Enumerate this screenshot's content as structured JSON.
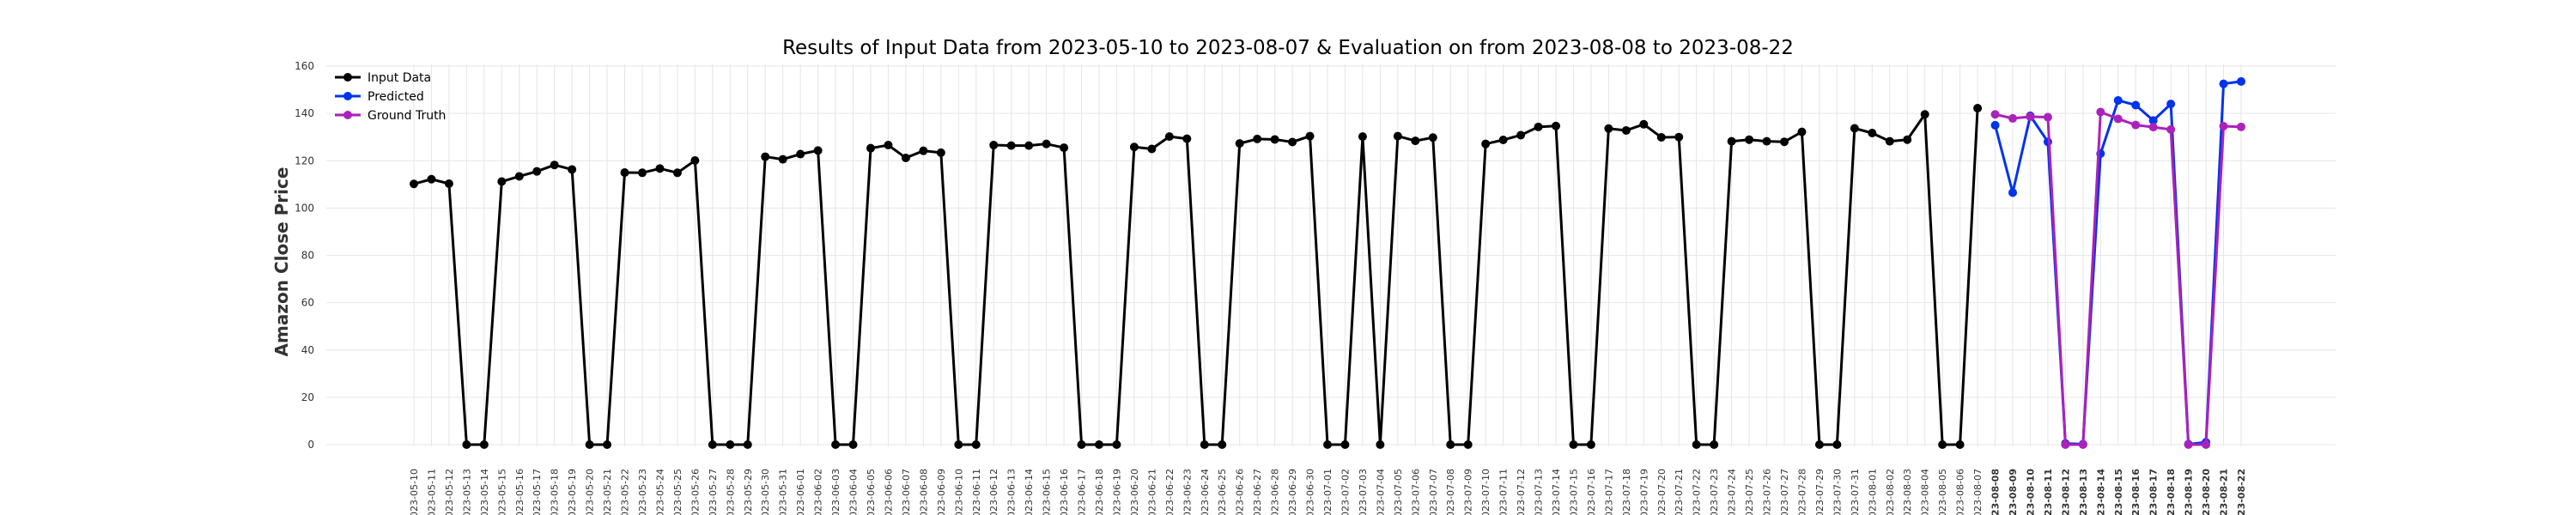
{
  "chart_data": {
    "type": "line",
    "title": "Results of Input Data from 2023-05-10 to 2023-08-07 & Evaluation on from 2023-08-08 to 2023-08-22",
    "ylabel": "Amazon Close Price",
    "xlabel": "",
    "ylim": [
      0,
      160
    ],
    "yticks": [
      0,
      20,
      40,
      60,
      80,
      100,
      120,
      140,
      160
    ],
    "grid": true,
    "legend_position": "top-left",
    "categories": [
      "2023-05-10",
      "2023-05-11",
      "2023-05-12",
      "2023-05-13",
      "2023-05-14",
      "2023-05-15",
      "2023-05-16",
      "2023-05-17",
      "2023-05-18",
      "2023-05-19",
      "2023-05-20",
      "2023-05-21",
      "2023-05-22",
      "2023-05-23",
      "2023-05-24",
      "2023-05-25",
      "2023-05-26",
      "2023-05-27",
      "2023-05-28",
      "2023-05-29",
      "2023-05-30",
      "2023-05-31",
      "2023-06-01",
      "2023-06-02",
      "2023-06-03",
      "2023-06-04",
      "2023-06-05",
      "2023-06-06",
      "2023-06-07",
      "2023-06-08",
      "2023-06-09",
      "2023-06-10",
      "2023-06-11",
      "2023-06-12",
      "2023-06-13",
      "2023-06-14",
      "2023-06-15",
      "2023-06-16",
      "2023-06-17",
      "2023-06-18",
      "2023-06-19",
      "2023-06-20",
      "2023-06-21",
      "2023-06-22",
      "2023-06-23",
      "2023-06-24",
      "2023-06-25",
      "2023-06-26",
      "2023-06-27",
      "2023-06-28",
      "2023-06-29",
      "2023-06-30",
      "2023-07-01",
      "2023-07-02",
      "2023-07-03",
      "2023-07-04",
      "2023-07-05",
      "2023-07-06",
      "2023-07-07",
      "2023-07-08",
      "2023-07-09",
      "2023-07-10",
      "2023-07-11",
      "2023-07-12",
      "2023-07-13",
      "2023-07-14",
      "2023-07-15",
      "2023-07-16",
      "2023-07-17",
      "2023-07-18",
      "2023-07-19",
      "2023-07-20",
      "2023-07-21",
      "2023-07-22",
      "2023-07-23",
      "2023-07-24",
      "2023-07-25",
      "2023-07-26",
      "2023-07-27",
      "2023-07-28",
      "2023-07-29",
      "2023-07-30",
      "2023-07-31",
      "2023-08-01",
      "2023-08-02",
      "2023-08-03",
      "2023-08-04",
      "2023-08-05",
      "2023-08-06",
      "2023-08-07",
      "2023-08-08",
      "2023-08-09",
      "2023-08-10",
      "2023-08-11",
      "2023-08-12",
      "2023-08-13",
      "2023-08-14",
      "2023-08-15",
      "2023-08-16",
      "2023-08-17",
      "2023-08-18",
      "2023-08-19",
      "2023-08-20",
      "2023-08-21",
      "2023-08-22"
    ],
    "series": [
      {
        "name": "Input Data",
        "color": "#000000",
        "x": [
          "2023-05-10",
          "2023-05-11",
          "2023-05-12",
          "2023-05-13",
          "2023-05-14",
          "2023-05-15",
          "2023-05-16",
          "2023-05-17",
          "2023-05-18",
          "2023-05-19",
          "2023-05-20",
          "2023-05-21",
          "2023-05-22",
          "2023-05-23",
          "2023-05-24",
          "2023-05-25",
          "2023-05-26",
          "2023-05-27",
          "2023-05-28",
          "2023-05-29",
          "2023-05-30",
          "2023-05-31",
          "2023-06-01",
          "2023-06-02",
          "2023-06-03",
          "2023-06-04",
          "2023-06-05",
          "2023-06-06",
          "2023-06-07",
          "2023-06-08",
          "2023-06-09",
          "2023-06-10",
          "2023-06-11",
          "2023-06-12",
          "2023-06-13",
          "2023-06-14",
          "2023-06-15",
          "2023-06-16",
          "2023-06-17",
          "2023-06-18",
          "2023-06-19",
          "2023-06-20",
          "2023-06-21",
          "2023-06-22",
          "2023-06-23",
          "2023-06-24",
          "2023-06-25",
          "2023-06-26",
          "2023-06-27",
          "2023-06-28",
          "2023-06-29",
          "2023-06-30",
          "2023-07-01",
          "2023-07-02",
          "2023-07-03",
          "2023-07-04",
          "2023-07-05",
          "2023-07-06",
          "2023-07-07",
          "2023-07-08",
          "2023-07-09",
          "2023-07-10",
          "2023-07-11",
          "2023-07-12",
          "2023-07-13",
          "2023-07-14",
          "2023-07-15",
          "2023-07-16",
          "2023-07-17",
          "2023-07-18",
          "2023-07-19",
          "2023-07-20",
          "2023-07-21",
          "2023-07-22",
          "2023-07-23",
          "2023-07-24",
          "2023-07-25",
          "2023-07-26",
          "2023-07-27",
          "2023-07-28",
          "2023-07-29",
          "2023-07-30",
          "2023-07-31",
          "2023-08-01",
          "2023-08-02",
          "2023-08-03",
          "2023-08-04",
          "2023-08-05",
          "2023-08-06",
          "2023-08-07"
        ],
        "values": [
          110.2,
          112.2,
          110.3,
          0,
          0,
          111.2,
          113.4,
          115.5,
          118.2,
          116.3,
          0,
          0,
          115.0,
          114.9,
          116.7,
          114.9,
          120.1,
          0,
          0,
          0,
          121.7,
          120.6,
          122.8,
          124.3,
          0,
          0,
          125.3,
          126.6,
          121.2,
          124.2,
          123.4,
          0,
          0,
          126.6,
          126.4,
          126.4,
          127.1,
          125.5,
          0,
          0,
          0,
          125.8,
          125.0,
          130.2,
          129.3,
          0,
          0,
          127.3,
          129.2,
          129.0,
          127.9,
          130.4,
          0,
          0,
          130.2,
          0,
          130.4,
          128.4,
          129.8,
          0,
          0,
          127.1,
          128.8,
          130.8,
          134.3,
          134.7,
          0,
          0,
          133.6,
          132.8,
          135.4,
          129.9,
          130.0,
          0,
          0,
          128.2,
          128.9,
          128.2,
          128.0,
          132.2,
          0,
          0,
          133.7,
          131.7,
          128.2,
          128.9,
          139.6,
          0,
          0,
          142.2
        ]
      },
      {
        "name": "Predicted",
        "color": "#0033ee",
        "x": [
          "2023-08-08",
          "2023-08-09",
          "2023-08-10",
          "2023-08-11",
          "2023-08-12",
          "2023-08-13",
          "2023-08-14",
          "2023-08-15",
          "2023-08-16",
          "2023-08-17",
          "2023-08-18",
          "2023-08-19",
          "2023-08-20",
          "2023-08-21",
          "2023-08-22"
        ],
        "values": [
          135.0,
          106.5,
          139.0,
          128.0,
          0.5,
          0.2,
          123.0,
          145.5,
          143.5,
          137.0,
          144.0,
          0.2,
          1.0,
          152.5,
          153.5
        ]
      },
      {
        "name": "Ground Truth",
        "color": "#aa22bb",
        "x": [
          "2023-08-08",
          "2023-08-09",
          "2023-08-10",
          "2023-08-11",
          "2023-08-12",
          "2023-08-13",
          "2023-08-14",
          "2023-08-15",
          "2023-08-16",
          "2023-08-17",
          "2023-08-18",
          "2023-08-19",
          "2023-08-20",
          "2023-08-21",
          "2023-08-22"
        ],
        "values": [
          139.6,
          137.9,
          138.6,
          138.4,
          0,
          0,
          140.6,
          137.7,
          135.1,
          134.2,
          133.2,
          0,
          0,
          134.6,
          134.3
        ]
      }
    ]
  }
}
